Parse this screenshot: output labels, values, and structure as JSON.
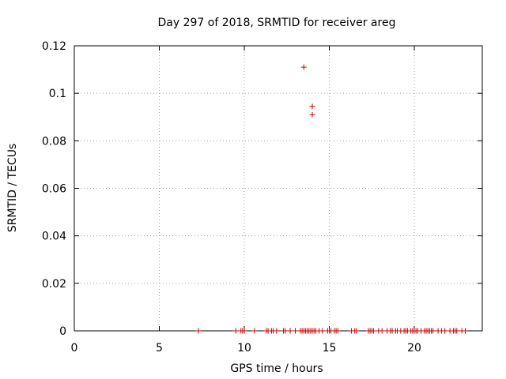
{
  "chart_data": {
    "type": "scatter",
    "title": "Day 297 of 2018, SRMTID for receiver areg",
    "xlabel": "GPS time / hours",
    "ylabel": "SRMTID / TECUs",
    "xlim": [
      0,
      24
    ],
    "ylim": [
      0,
      0.12
    ],
    "xticks": [
      0,
      5,
      10,
      15,
      20
    ],
    "xtick_labels": [
      "0",
      "5",
      "10",
      "15",
      "20"
    ],
    "yticks": [
      0,
      0.02,
      0.04,
      0.06,
      0.08,
      0.1,
      0.12
    ],
    "ytick_labels": [
      "0",
      "0.02",
      "0.04",
      "0.06",
      "0.08",
      "0.1",
      "0.12"
    ],
    "grid": true,
    "marker": "+",
    "series": [
      {
        "name": "SRMTID",
        "color": "#cc0000",
        "points": [
          [
            13.5,
            0.111
          ],
          [
            14.0,
            0.0945
          ],
          [
            14.0,
            0.091
          ],
          [
            7.3,
            0
          ],
          [
            9.5,
            0
          ],
          [
            9.8,
            0
          ],
          [
            9.9,
            0
          ],
          [
            10.0,
            0
          ],
          [
            10.6,
            0
          ],
          [
            11.3,
            0
          ],
          [
            11.4,
            0
          ],
          [
            11.6,
            0
          ],
          [
            11.7,
            0
          ],
          [
            11.9,
            0
          ],
          [
            12.3,
            0
          ],
          [
            12.4,
            0
          ],
          [
            12.7,
            0
          ],
          [
            13.0,
            0
          ],
          [
            13.3,
            0
          ],
          [
            13.4,
            0
          ],
          [
            13.5,
            0
          ],
          [
            13.6,
            0
          ],
          [
            13.7,
            0
          ],
          [
            13.8,
            0
          ],
          [
            13.9,
            0
          ],
          [
            14.0,
            0
          ],
          [
            14.1,
            0
          ],
          [
            14.2,
            0
          ],
          [
            14.4,
            0
          ],
          [
            14.6,
            0
          ],
          [
            14.9,
            0
          ],
          [
            15.0,
            0
          ],
          [
            15.1,
            0
          ],
          [
            15.3,
            0
          ],
          [
            15.4,
            0
          ],
          [
            15.5,
            0
          ],
          [
            16.3,
            0
          ],
          [
            16.5,
            0
          ],
          [
            16.6,
            0
          ],
          [
            17.3,
            0
          ],
          [
            17.4,
            0
          ],
          [
            17.5,
            0
          ],
          [
            17.6,
            0
          ],
          [
            17.9,
            0
          ],
          [
            18.1,
            0
          ],
          [
            18.4,
            0
          ],
          [
            18.6,
            0
          ],
          [
            18.7,
            0
          ],
          [
            18.9,
            0
          ],
          [
            19.0,
            0
          ],
          [
            19.2,
            0
          ],
          [
            19.4,
            0
          ],
          [
            19.5,
            0
          ],
          [
            19.6,
            0
          ],
          [
            19.8,
            0
          ],
          [
            19.9,
            0
          ],
          [
            20.0,
            0
          ],
          [
            20.1,
            0
          ],
          [
            20.2,
            0
          ],
          [
            20.4,
            0
          ],
          [
            20.6,
            0
          ],
          [
            20.7,
            0
          ],
          [
            20.8,
            0
          ],
          [
            20.9,
            0
          ],
          [
            21.0,
            0
          ],
          [
            21.1,
            0
          ],
          [
            21.4,
            0
          ],
          [
            21.6,
            0
          ],
          [
            21.8,
            0
          ],
          [
            22.1,
            0
          ],
          [
            22.3,
            0
          ],
          [
            22.4,
            0
          ],
          [
            22.5,
            0
          ],
          [
            22.8,
            0
          ],
          [
            23.0,
            0
          ]
        ]
      }
    ]
  }
}
